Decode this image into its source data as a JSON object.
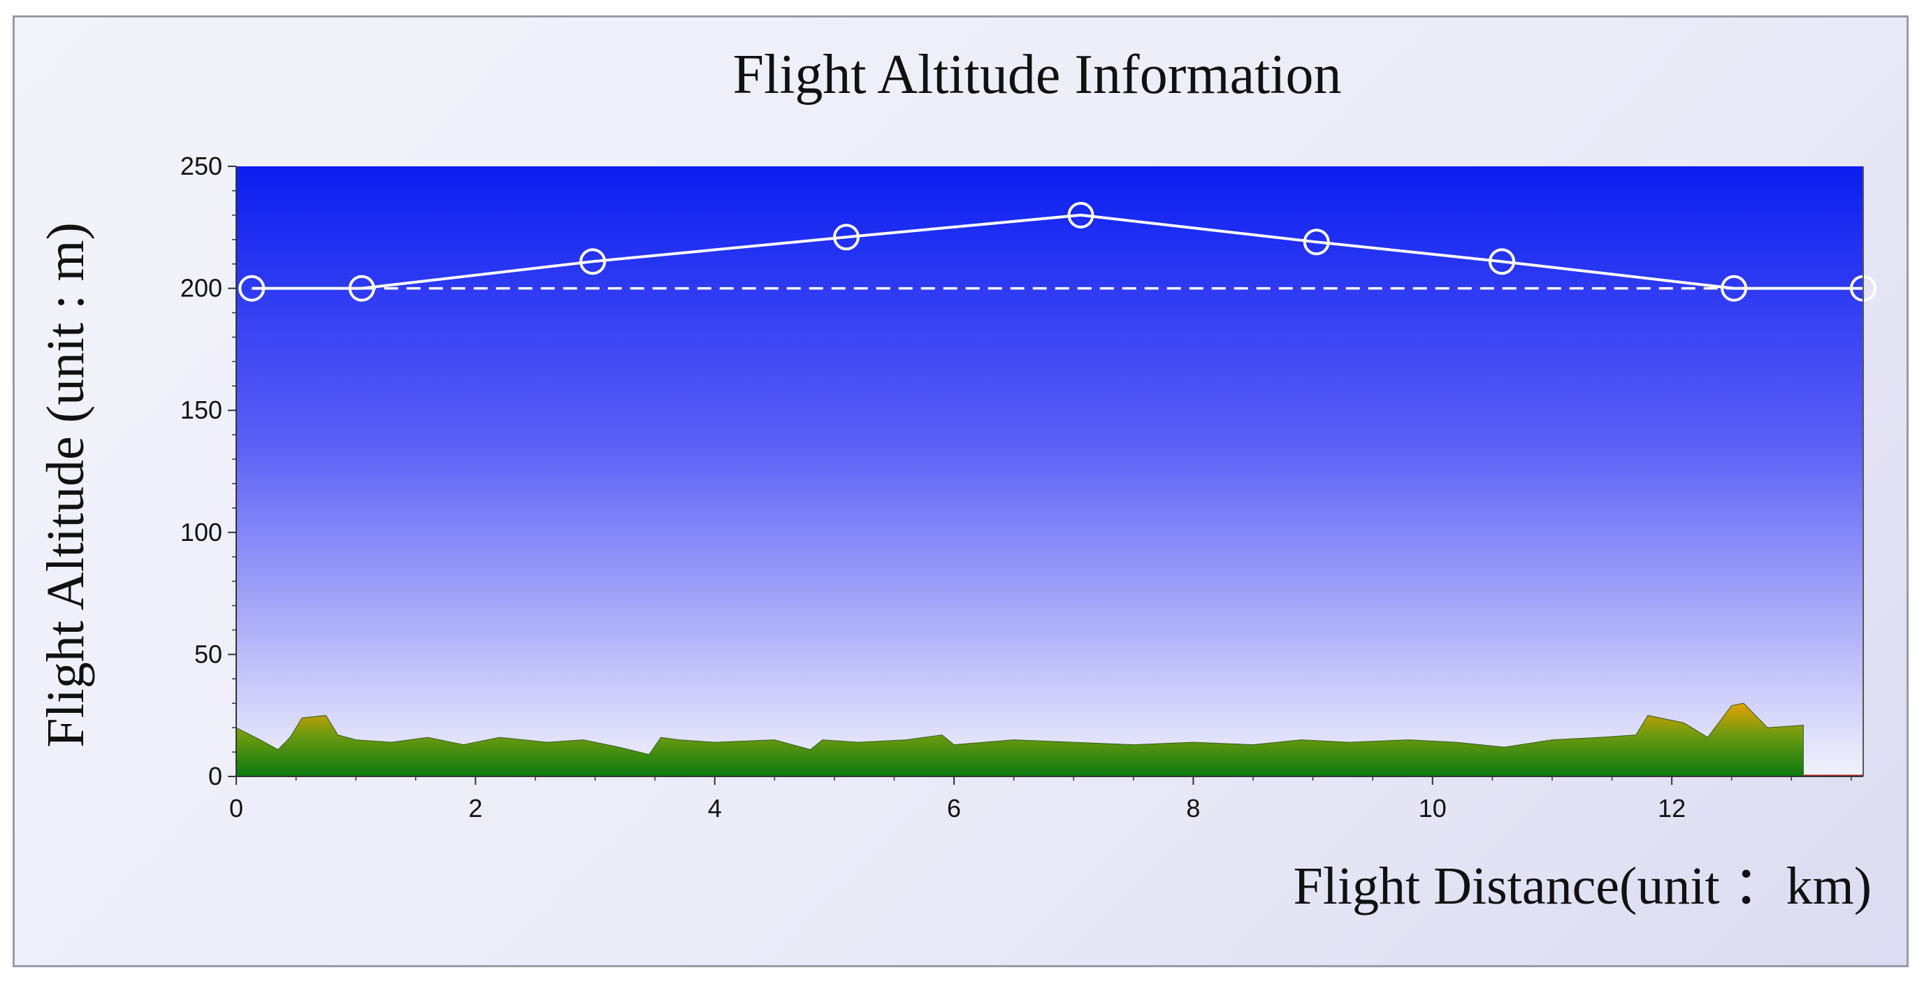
{
  "chart_data": {
    "type": "line",
    "title": "Flight Altitude Information",
    "xlabel": "Flight Distance(unit ：km)",
    "ylabel": "Flight Altitude (unit : m)",
    "xlim": [
      0,
      13.6
    ],
    "ylim": [
      0,
      250
    ],
    "x_ticks": [
      0,
      2,
      4,
      6,
      8,
      10,
      12
    ],
    "y_ticks": [
      0,
      50,
      100,
      150,
      200,
      250
    ],
    "grid": false,
    "legend": "none",
    "series": [
      {
        "points": [
          {
            "x": 0.13,
            "y": 200
          },
          {
            "x": 1.05,
            "y": 200
          },
          {
            "x": 2.98,
            "y": 211
          },
          {
            "x": 5.1,
            "y": 221
          },
          {
            "x": 7.06,
            "y": 230
          },
          {
            "x": 9.03,
            "y": 219
          },
          {
            "x": 10.58,
            "y": 211
          },
          {
            "x": 12.52,
            "y": 200
          },
          {
            "x": 13.6,
            "y": 200
          }
        ]
      }
    ],
    "reference_line": {
      "y": 200,
      "x_start": 1.05,
      "x_end": 12.52,
      "style": "dashed"
    },
    "terrain": {
      "x": [
        0,
        0.2,
        0.35,
        0.45,
        0.55,
        0.75,
        0.85,
        1.0,
        1.3,
        1.6,
        1.9,
        2.2,
        2.6,
        2.9,
        3.2,
        3.45,
        3.55,
        3.7,
        4.0,
        4.5,
        4.8,
        4.9,
        5.2,
        5.6,
        5.9,
        6.0,
        6.5,
        7.0,
        7.5,
        8.0,
        8.5,
        8.9,
        9.3,
        9.8,
        10.2,
        10.6,
        11.0,
        11.4,
        11.7,
        11.8,
        12.1,
        12.3,
        12.5,
        12.6,
        12.8,
        13.1
      ],
      "y": [
        20,
        15,
        11,
        16,
        24,
        25,
        17,
        15,
        14,
        16,
        13,
        16,
        14,
        15,
        12,
        9,
        16,
        15,
        14,
        15,
        11,
        15,
        14,
        15,
        17,
        13,
        15,
        14,
        13,
        14,
        13,
        15,
        14,
        15,
        14,
        12,
        15,
        16,
        17,
        25,
        22,
        16,
        29,
        30,
        20,
        21
      ]
    },
    "colors": {
      "sky_top": "#0b1ef0",
      "sky_mid": "#5a5ef6",
      "sky_bottom": "#f2f2fb",
      "line": "#ffffff",
      "terrain_top": "#e6a000",
      "terrain_bottom": "#0a7a10",
      "ground_line": "#b03020"
    }
  }
}
